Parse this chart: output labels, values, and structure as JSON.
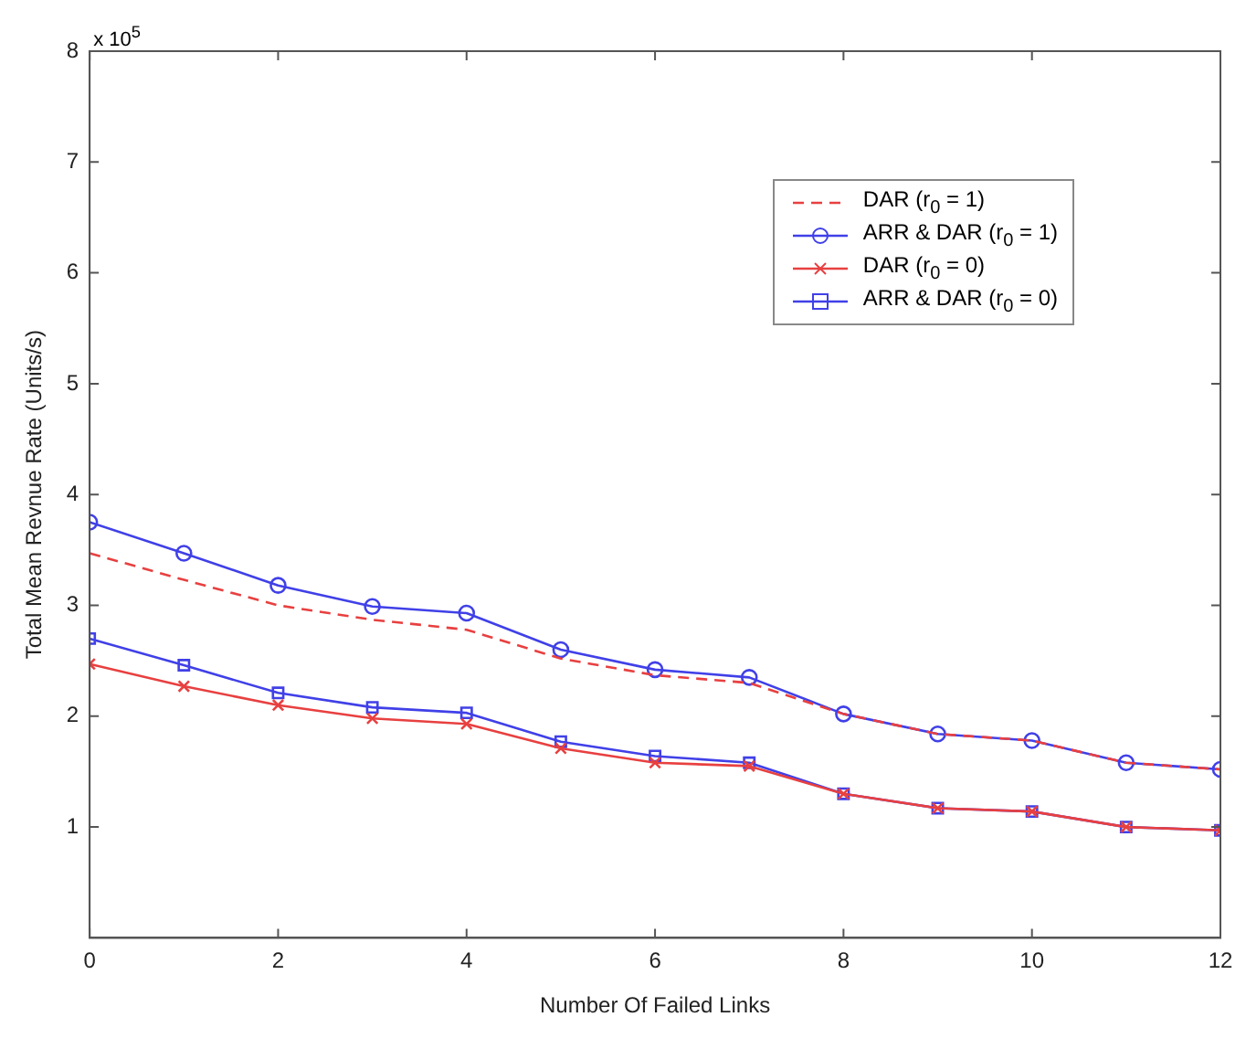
{
  "chart_data": {
    "type": "line",
    "xlabel": "Number Of Failed Links",
    "ylabel": "Total Mean Revnue Rate (Units/s)",
    "annotations": [
      "x 10$^{5}$"
    ],
    "x": [
      0,
      1,
      2,
      3,
      4,
      5,
      6,
      7,
      8,
      9,
      10,
      11,
      12
    ],
    "xlim": [
      0,
      12
    ],
    "xticks": [
      0,
      2,
      4,
      6,
      8,
      10,
      12
    ],
    "ylim": [
      0,
      8
    ],
    "yticks": [
      1,
      2,
      3,
      4,
      5,
      6,
      7,
      8
    ],
    "grid": false,
    "legend": "top right",
    "series": [
      {
        "name": "DAR (r$_{0}$ = 1)",
        "color": "#e84040",
        "marker": "none",
        "line_style": "dashed",
        "values": [
          3.47,
          3.23,
          3.0,
          2.87,
          2.78,
          2.52,
          2.37,
          2.3,
          2.02,
          1.84,
          1.78,
          1.58,
          1.52
        ]
      },
      {
        "name": "ARR & DAR (r$_{0}$ = 1)",
        "color": "#4040e8",
        "marker": "circle",
        "line_style": "solid",
        "values": [
          3.75,
          3.47,
          3.18,
          2.99,
          2.93,
          2.6,
          2.42,
          2.35,
          2.02,
          1.84,
          1.78,
          1.58,
          1.52
        ]
      },
      {
        "name": "DAR (r$_{0}$ = 0)",
        "color": "#e84040",
        "marker": "cross",
        "line_style": "solid",
        "values": [
          2.47,
          2.27,
          2.1,
          1.98,
          1.93,
          1.71,
          1.58,
          1.55,
          1.3,
          1.17,
          1.14,
          1.0,
          0.97
        ]
      },
      {
        "name": "ARR & DAR (r$_{0}$ = 0)",
        "color": "#4040e8",
        "marker": "square",
        "line_style": "solid",
        "values": [
          2.7,
          2.46,
          2.21,
          2.08,
          2.03,
          1.77,
          1.64,
          1.58,
          1.3,
          1.17,
          1.14,
          1.0,
          0.97
        ]
      }
    ]
  }
}
